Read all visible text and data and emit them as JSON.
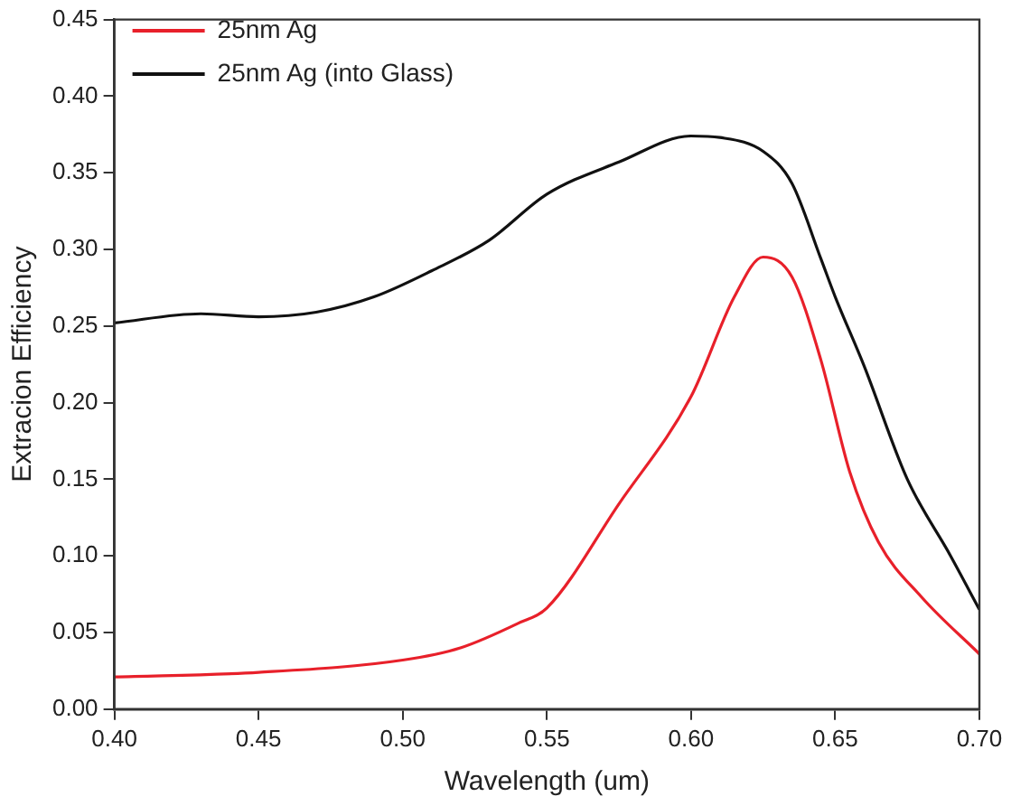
{
  "chart_data": {
    "type": "line",
    "xlabel": "Wavelength (um)",
    "ylabel": "Extracion Efficiency",
    "legend": "top left",
    "grid": false,
    "marker": "none",
    "line_style": "solid",
    "xlim": [
      0.4,
      0.7
    ],
    "ylim": [
      0,
      0.45
    ],
    "xticks": [
      {
        "value": 0.4,
        "label": "0.40"
      },
      {
        "value": 0.45,
        "label": "0.45"
      },
      {
        "value": 0.5,
        "label": "0.50"
      },
      {
        "value": 0.55,
        "label": "0.55"
      },
      {
        "value": 0.6,
        "label": "0.60"
      },
      {
        "value": 0.65,
        "label": "0.65"
      },
      {
        "value": 0.7,
        "label": "0.70"
      }
    ],
    "yticks": [
      {
        "value": 0,
        "label": "0.00"
      },
      {
        "value": 0.05,
        "label": "0.05"
      },
      {
        "value": 0.1,
        "label": "0.10"
      },
      {
        "value": 0.15,
        "label": "0.15"
      },
      {
        "value": 0.2,
        "label": "0.20"
      },
      {
        "value": 0.25,
        "label": "0.25"
      },
      {
        "value": 0.3,
        "label": "0.30"
      },
      {
        "value": 0.35,
        "label": "0.35"
      },
      {
        "value": 0.4,
        "label": "0.40"
      },
      {
        "value": 0.45,
        "label": "0.45"
      }
    ],
    "series": [
      {
        "name": "25nm Ag",
        "color": "#e8202a",
        "x": [
          0.4,
          0.45,
          0.5,
          0.52,
          0.54,
          0.55,
          0.575,
          0.6,
          0.615,
          0.625,
          0.635,
          0.645,
          0.655,
          0.665,
          0.68,
          0.7
        ],
        "values": [
          0.021,
          0.024,
          0.032,
          0.04,
          0.056,
          0.066,
          0.134,
          0.204,
          0.269,
          0.295,
          0.282,
          0.228,
          0.155,
          0.109,
          0.073,
          0.036
        ]
      },
      {
        "name": "25nm Ag (into Glass)",
        "color": "#111111",
        "x": [
          0.4,
          0.43,
          0.45,
          0.47,
          0.49,
          0.51,
          0.53,
          0.55,
          0.575,
          0.6,
          0.61,
          0.625,
          0.635,
          0.645,
          0.65,
          0.66,
          0.675,
          0.69,
          0.7
        ],
        "values": [
          0.252,
          0.258,
          0.256,
          0.259,
          0.269,
          0.286,
          0.306,
          0.336,
          0.357,
          0.374,
          0.373,
          0.364,
          0.343,
          0.294,
          0.269,
          0.224,
          0.15,
          0.1,
          0.065
        ]
      }
    ]
  }
}
